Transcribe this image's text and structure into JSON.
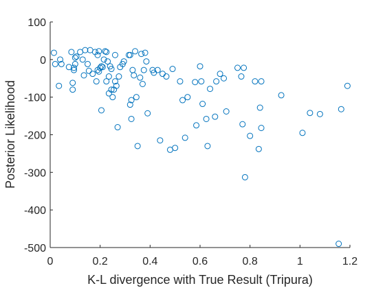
{
  "chart_data": {
    "type": "scatter",
    "title": "",
    "xlabel": "K-L divergence with True Result (Tripura)",
    "ylabel": "Posterior Likelihood",
    "xlim": [
      0,
      1.2
    ],
    "ylim": [
      -500,
      100
    ],
    "xticks": [
      0,
      0.2,
      0.4,
      0.6,
      0.8,
      1,
      1.2
    ],
    "xtick_labels": [
      "0",
      "0.2",
      "0.4",
      "0.6",
      "0.8",
      "1",
      "1.2"
    ],
    "yticks": [
      -500,
      -400,
      -300,
      -200,
      -100,
      0,
      100
    ],
    "ytick_labels": [
      "-500",
      "-400",
      "-300",
      "-200",
      "-100",
      "0",
      "100"
    ],
    "grid": false,
    "box": "left-bottom",
    "marker": "open-circle",
    "marker_color": "#0072bd",
    "series": [
      {
        "name": "",
        "points": [
          [
            0.015,
            18
          ],
          [
            0.02,
            -12
          ],
          [
            0.035,
            -70
          ],
          [
            0.04,
            0
          ],
          [
            0.045,
            -12
          ],
          [
            0.075,
            -20
          ],
          [
            0.085,
            20
          ],
          [
            0.09,
            -62
          ],
          [
            0.09,
            -80
          ],
          [
            0.095,
            -28
          ],
          [
            0.095,
            -22
          ],
          [
            0.1,
            -12
          ],
          [
            0.1,
            5
          ],
          [
            0.105,
            8
          ],
          [
            0.12,
            20
          ],
          [
            0.13,
            0
          ],
          [
            0.135,
            -42
          ],
          [
            0.14,
            25
          ],
          [
            0.15,
            -12
          ],
          [
            0.155,
            -30
          ],
          [
            0.16,
            25
          ],
          [
            0.17,
            -38
          ],
          [
            0.18,
            20
          ],
          [
            0.185,
            -58
          ],
          [
            0.19,
            -28
          ],
          [
            0.19,
            12
          ],
          [
            0.195,
            -32
          ],
          [
            0.195,
            22
          ],
          [
            0.2,
            -22
          ],
          [
            0.205,
            -18
          ],
          [
            0.205,
            -135
          ],
          [
            0.21,
            -20
          ],
          [
            0.215,
            0
          ],
          [
            0.22,
            22
          ],
          [
            0.225,
            20
          ],
          [
            0.225,
            -58
          ],
          [
            0.23,
            -5
          ],
          [
            0.235,
            -45
          ],
          [
            0.235,
            -90
          ],
          [
            0.24,
            -18
          ],
          [
            0.245,
            -25
          ],
          [
            0.245,
            -80
          ],
          [
            0.25,
            -100
          ],
          [
            0.255,
            -80
          ],
          [
            0.26,
            12
          ],
          [
            0.26,
            -58
          ],
          [
            0.265,
            -70
          ],
          [
            0.27,
            -180
          ],
          [
            0.275,
            -45
          ],
          [
            0.28,
            -20
          ],
          [
            0.29,
            -12
          ],
          [
            0.295,
            -5
          ],
          [
            0.315,
            12
          ],
          [
            0.32,
            12
          ],
          [
            0.32,
            -120
          ],
          [
            0.325,
            -108
          ],
          [
            0.325,
            -158
          ],
          [
            0.33,
            -28
          ],
          [
            0.335,
            -42
          ],
          [
            0.34,
            22
          ],
          [
            0.345,
            -100
          ],
          [
            0.35,
            -230
          ],
          [
            0.36,
            -48
          ],
          [
            0.365,
            15
          ],
          [
            0.37,
            -65
          ],
          [
            0.375,
            -28
          ],
          [
            0.38,
            18
          ],
          [
            0.385,
            -5
          ],
          [
            0.39,
            -143
          ],
          [
            0.41,
            -28
          ],
          [
            0.415,
            -35
          ],
          [
            0.43,
            -28
          ],
          [
            0.44,
            -215
          ],
          [
            0.45,
            -38
          ],
          [
            0.465,
            -45
          ],
          [
            0.48,
            -240
          ],
          [
            0.49,
            -25
          ],
          [
            0.5,
            -235
          ],
          [
            0.52,
            -58
          ],
          [
            0.53,
            -108
          ],
          [
            0.54,
            -208
          ],
          [
            0.55,
            -100
          ],
          [
            0.58,
            -60
          ],
          [
            0.585,
            -175
          ],
          [
            0.6,
            -18
          ],
          [
            0.605,
            -58
          ],
          [
            0.61,
            -118
          ],
          [
            0.625,
            -158
          ],
          [
            0.63,
            -230
          ],
          [
            0.64,
            -78
          ],
          [
            0.66,
            -152
          ],
          [
            0.665,
            -58
          ],
          [
            0.68,
            -38
          ],
          [
            0.695,
            -50
          ],
          [
            0.705,
            -138
          ],
          [
            0.75,
            -22
          ],
          [
            0.765,
            -45
          ],
          [
            0.77,
            -172
          ],
          [
            0.775,
            -22
          ],
          [
            0.78,
            -313
          ],
          [
            0.8,
            -203
          ],
          [
            0.82,
            -58
          ],
          [
            0.835,
            -238
          ],
          [
            0.84,
            -128
          ],
          [
            0.845,
            -58
          ],
          [
            0.845,
            -182
          ],
          [
            0.925,
            -95
          ],
          [
            1.01,
            -195
          ],
          [
            1.04,
            -142
          ],
          [
            1.08,
            -145
          ],
          [
            1.155,
            -490
          ],
          [
            1.165,
            -132
          ],
          [
            1.19,
            -70
          ]
        ]
      }
    ]
  }
}
